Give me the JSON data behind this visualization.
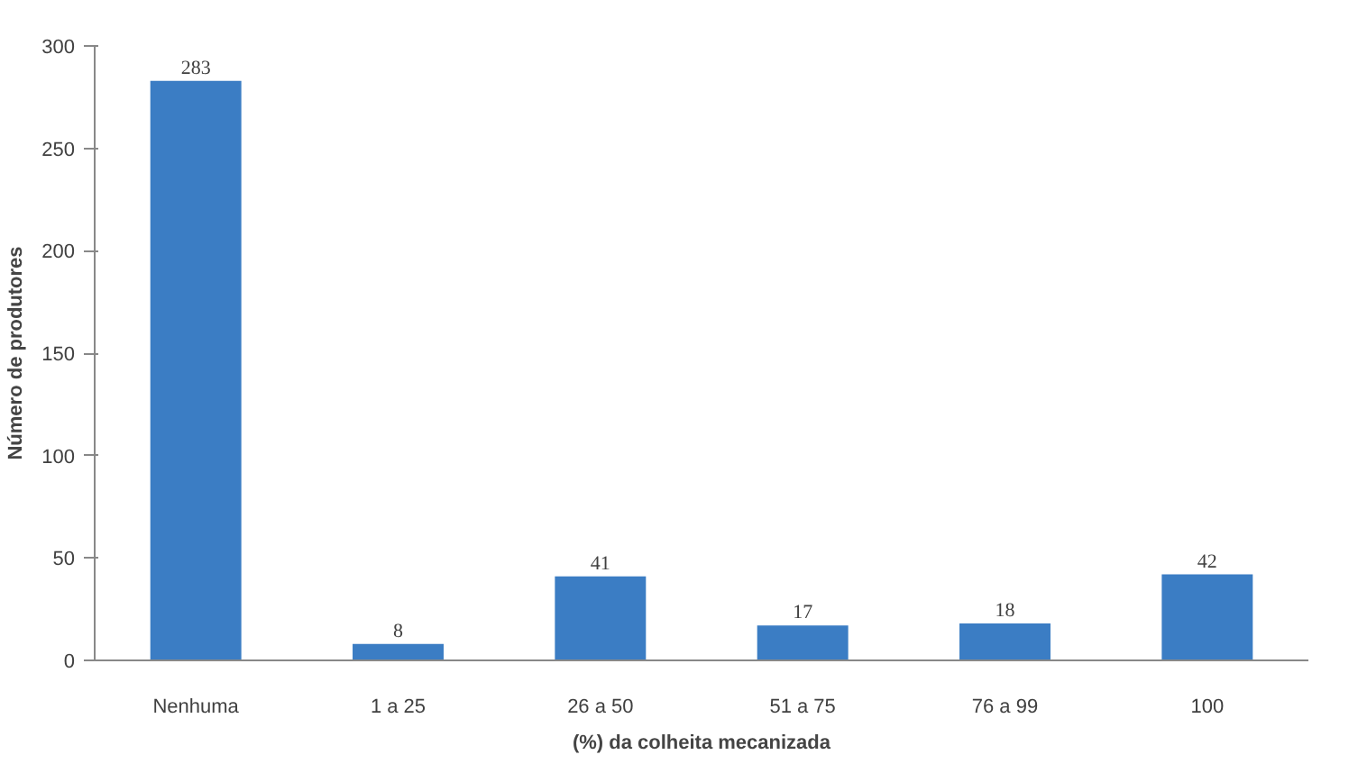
{
  "chart_data": {
    "type": "bar",
    "xlabel": "(%) da colheita mecanizada",
    "ylabel": "Número de produtores",
    "categories": [
      "Nenhuma",
      "1 a 25",
      "26 a 50",
      "51 a 75",
      "76 a 99",
      "100"
    ],
    "values": [
      283,
      8,
      41,
      17,
      18,
      42
    ],
    "color": "#3b7dc4",
    "ylim": [
      0,
      300
    ],
    "yticks": [
      0,
      50,
      100,
      150,
      200,
      250,
      300
    ],
    "grid": false,
    "data_labels": true
  }
}
